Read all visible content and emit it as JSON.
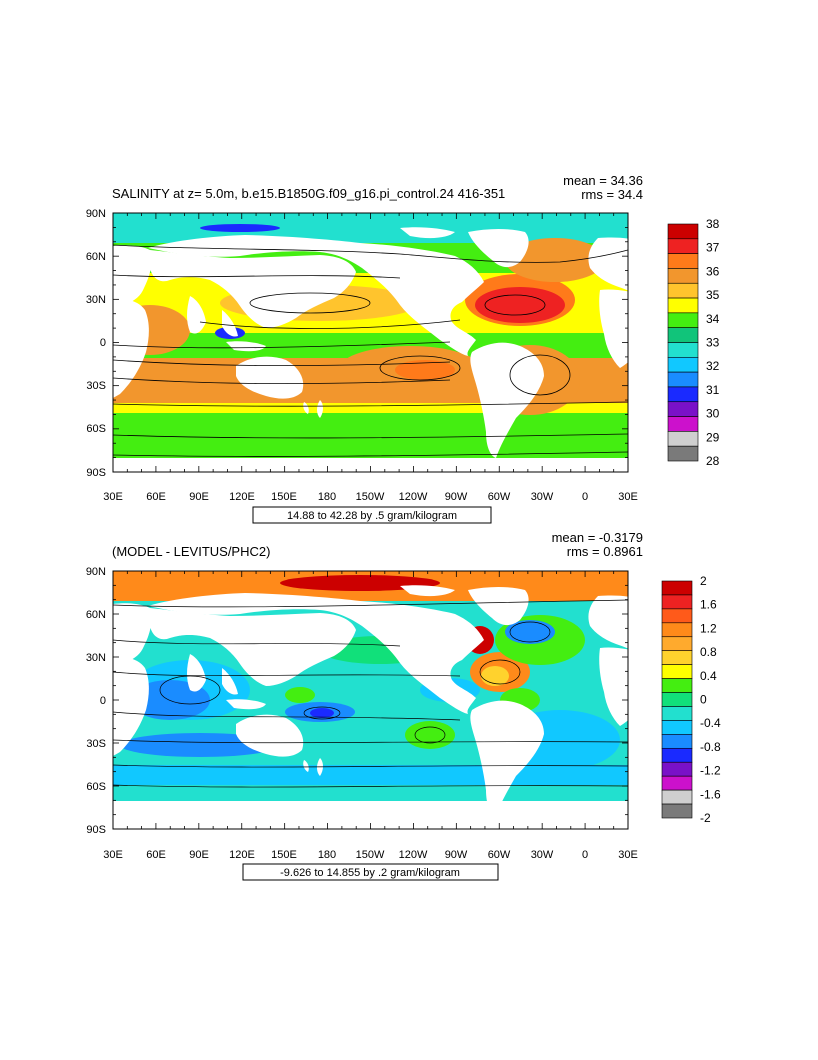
{
  "top_panel": {
    "title": "SALINITY at z=    5.0m, b.e15.B1850G.f09_g16.pi_control.24 416-351",
    "mean_text": "mean = 34.36",
    "rms_text": "rms = 34.4",
    "range_text": "14.88 to 42.28 by .5 gram/kilogram",
    "colorbar_labels": [
      "38",
      "37",
      "36",
      "35",
      "34",
      "33",
      "32",
      "31",
      "30",
      "29",
      "28"
    ],
    "colorbar_colors": [
      "#cc0000",
      "#ee2222",
      "#ff7a1a",
      "#f2962d",
      "#ffc42d",
      "#ffff00",
      "#44ee11",
      "#11c47a",
      "#22e0cf",
      "#11c8ff",
      "#1a8cff",
      "#1a2aff",
      "#7a11c8",
      "#cc11cc",
      "#cfcfcf",
      "#7a7a7a"
    ]
  },
  "bottom_panel": {
    "title": "(MODEL - LEVITUS/PHC2)",
    "mean_text": "mean = -0.3179",
    "rms_text": "rms = 0.8961",
    "range_text": "-9.626 to 14.855 by .2 gram/kilogram",
    "colorbar_labels": [
      "2",
      "1.6",
      "1.2",
      "0.8",
      "0.4",
      "0",
      "-0.4",
      "-0.8",
      "-1.2",
      "-1.6",
      "-2"
    ],
    "colorbar_colors": [
      "#cc0000",
      "#ee2222",
      "#ff5a1a",
      "#ff8a1a",
      "#ffaa2d",
      "#ffd22d",
      "#ffff00",
      "#44ee11",
      "#11e07a",
      "#22e0cf",
      "#11c8ff",
      "#1a8cff",
      "#1a2aff",
      "#7a11c8",
      "#cc11cc",
      "#cfcfcf",
      "#7a7a7a"
    ]
  },
  "axes": {
    "lat_labels": [
      "90N",
      "60N",
      "30N",
      "0",
      "30S",
      "60S",
      "90S"
    ],
    "lon_labels": [
      "30E",
      "60E",
      "90E",
      "120E",
      "150E",
      "180",
      "150W",
      "120W",
      "90W",
      "60W",
      "30W",
      "0",
      "30E"
    ]
  }
}
